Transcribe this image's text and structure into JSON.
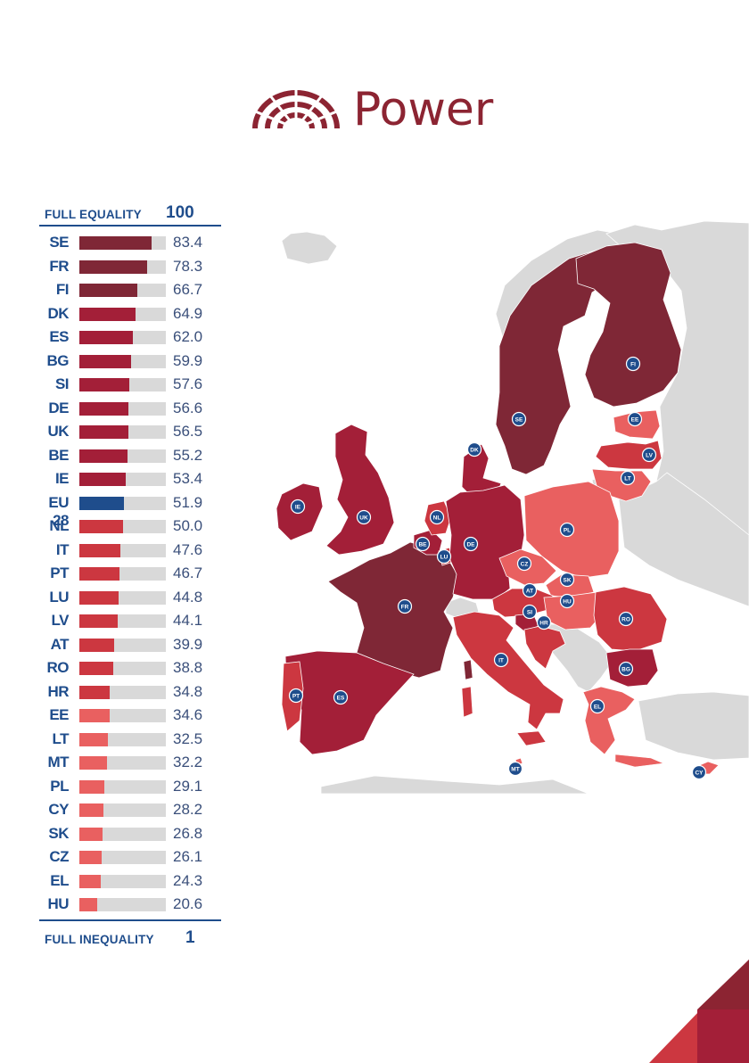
{
  "header": {
    "title": "Power",
    "icon": "parliament-icon"
  },
  "scale": {
    "top_label": "FULL EQUALITY",
    "top_value": "100",
    "bottom_label": "FULL INEQUALITY",
    "bottom_value": "1"
  },
  "colors": {
    "darkest": "#7f2736",
    "dark": "#a31f38",
    "medium": "#cc3740",
    "light": "#e96060",
    "eu_average": "#1f4d8c",
    "track": "#d9d9d9",
    "non_eu": "#d9d9d9",
    "label_blue": "#1f4d8c"
  },
  "chart_data": {
    "type": "bar",
    "orientation": "horizontal",
    "categories": [
      "SE",
      "FR",
      "FI",
      "DK",
      "ES",
      "BG",
      "SI",
      "DE",
      "UK",
      "BE",
      "IE",
      "EU 28",
      "NL",
      "IT",
      "PT",
      "LU",
      "LV",
      "AT",
      "RO",
      "HR",
      "EE",
      "LT",
      "MT",
      "PL",
      "CY",
      "SK",
      "CZ",
      "EL",
      "HU"
    ],
    "values": [
      83.4,
      78.3,
      66.7,
      64.9,
      62.0,
      59.9,
      57.6,
      56.6,
      56.5,
      55.2,
      53.4,
      51.9,
      50.0,
      47.6,
      46.7,
      44.8,
      44.1,
      39.9,
      38.8,
      34.8,
      34.6,
      32.5,
      32.2,
      29.1,
      28.2,
      26.8,
      26.1,
      24.3,
      20.6
    ],
    "value_labels": [
      "83.4",
      "78.3",
      "66.7",
      "64.9",
      "62.0",
      "59.9",
      "57.6",
      "56.6",
      "56.5",
      "55.2",
      "53.4",
      "51.9",
      "50.0",
      "47.6",
      "46.7",
      "44.8",
      "44.1",
      "39.9",
      "38.8",
      "34.8",
      "34.6",
      "32.5",
      "32.2",
      "29.1",
      "28.2",
      "26.8",
      "26.1",
      "24.3",
      "20.6"
    ],
    "tiers": [
      "darkest",
      "darkest",
      "darkest",
      "dark",
      "dark",
      "dark",
      "dark",
      "dark",
      "dark",
      "dark",
      "dark",
      "eu_average",
      "medium",
      "medium",
      "medium",
      "medium",
      "medium",
      "medium",
      "medium",
      "medium",
      "light",
      "light",
      "light",
      "light",
      "light",
      "light",
      "light",
      "light",
      "light"
    ],
    "xlim": [
      1,
      100
    ],
    "title": "Power"
  },
  "map": {
    "countries": [
      {
        "code": "SE",
        "tier": "darkest"
      },
      {
        "code": "FI",
        "tier": "darkest"
      },
      {
        "code": "FR",
        "tier": "darkest"
      },
      {
        "code": "DK",
        "tier": "dark"
      },
      {
        "code": "ES",
        "tier": "dark"
      },
      {
        "code": "BG",
        "tier": "dark"
      },
      {
        "code": "SI",
        "tier": "dark"
      },
      {
        "code": "DE",
        "tier": "dark"
      },
      {
        "code": "UK",
        "tier": "dark"
      },
      {
        "code": "BE",
        "tier": "dark"
      },
      {
        "code": "IE",
        "tier": "dark"
      },
      {
        "code": "NL",
        "tier": "medium"
      },
      {
        "code": "IT",
        "tier": "medium"
      },
      {
        "code": "PT",
        "tier": "medium"
      },
      {
        "code": "LU",
        "tier": "medium"
      },
      {
        "code": "LV",
        "tier": "medium"
      },
      {
        "code": "AT",
        "tier": "medium"
      },
      {
        "code": "RO",
        "tier": "medium"
      },
      {
        "code": "HR",
        "tier": "medium"
      },
      {
        "code": "EE",
        "tier": "light"
      },
      {
        "code": "LT",
        "tier": "light"
      },
      {
        "code": "MT",
        "tier": "light"
      },
      {
        "code": "PL",
        "tier": "light"
      },
      {
        "code": "CY",
        "tier": "light"
      },
      {
        "code": "SK",
        "tier": "light"
      },
      {
        "code": "CZ",
        "tier": "light"
      },
      {
        "code": "EL",
        "tier": "light"
      },
      {
        "code": "HU",
        "tier": "light"
      }
    ]
  }
}
